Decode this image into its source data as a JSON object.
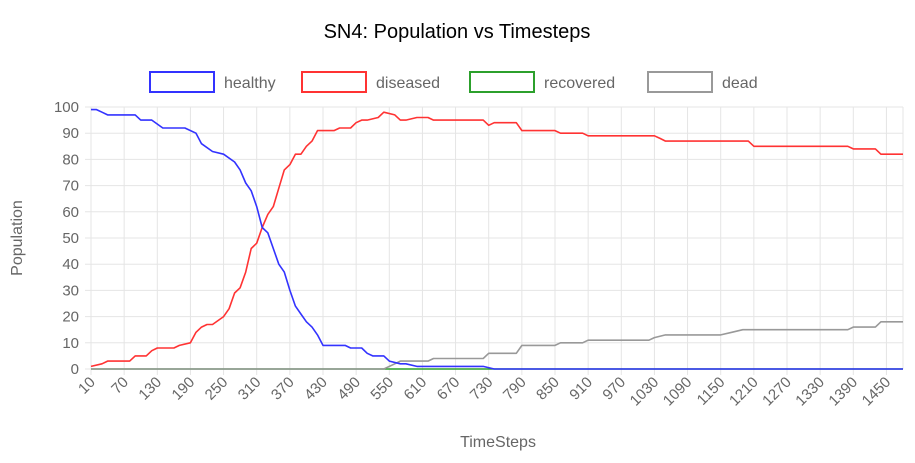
{
  "chart_data": {
    "type": "line",
    "title": "SN4: Population vs Timesteps",
    "xlabel": "TimeSteps",
    "ylabel": "Population",
    "xlim": [
      10,
      1480
    ],
    "ylim": [
      0,
      100
    ],
    "yticks": [
      0,
      10,
      20,
      30,
      40,
      50,
      60,
      70,
      80,
      90,
      100
    ],
    "xticks": [
      10,
      70,
      130,
      190,
      250,
      310,
      370,
      430,
      490,
      550,
      610,
      670,
      730,
      790,
      850,
      910,
      970,
      1030,
      1090,
      1150,
      1210,
      1270,
      1330,
      1390,
      1450
    ],
    "grid": true,
    "legend_position": "top",
    "series": [
      {
        "name": "healthy",
        "color": "#3333ff",
        "points": [
          [
            10,
            99
          ],
          [
            20,
            99
          ],
          [
            30,
            98
          ],
          [
            40,
            97
          ],
          [
            90,
            97
          ],
          [
            100,
            95
          ],
          [
            120,
            95
          ],
          [
            140,
            92
          ],
          [
            180,
            92
          ],
          [
            200,
            90
          ],
          [
            210,
            86
          ],
          [
            230,
            83
          ],
          [
            250,
            82
          ],
          [
            270,
            79
          ],
          [
            280,
            76
          ],
          [
            290,
            71
          ],
          [
            300,
            68
          ],
          [
            310,
            62
          ],
          [
            320,
            54
          ],
          [
            330,
            52
          ],
          [
            340,
            46
          ],
          [
            350,
            40
          ],
          [
            360,
            37
          ],
          [
            370,
            30
          ],
          [
            380,
            24
          ],
          [
            390,
            21
          ],
          [
            400,
            18
          ],
          [
            410,
            16
          ],
          [
            420,
            13
          ],
          [
            430,
            9
          ],
          [
            470,
            9
          ],
          [
            480,
            8
          ],
          [
            500,
            8
          ],
          [
            510,
            6
          ],
          [
            520,
            5
          ],
          [
            540,
            5
          ],
          [
            550,
            3
          ],
          [
            570,
            2
          ],
          [
            580,
            2
          ],
          [
            600,
            1
          ],
          [
            720,
            1
          ],
          [
            740,
            0
          ],
          [
            1480,
            0
          ]
        ]
      },
      {
        "name": "diseased",
        "color": "#ff3333",
        "points": [
          [
            10,
            1
          ],
          [
            30,
            2
          ],
          [
            40,
            3
          ],
          [
            80,
            3
          ],
          [
            90,
            5
          ],
          [
            110,
            5
          ],
          [
            120,
            7
          ],
          [
            130,
            8
          ],
          [
            160,
            8
          ],
          [
            170,
            9
          ],
          [
            190,
            10
          ],
          [
            200,
            14
          ],
          [
            210,
            16
          ],
          [
            220,
            17
          ],
          [
            230,
            17
          ],
          [
            250,
            20
          ],
          [
            260,
            23
          ],
          [
            270,
            29
          ],
          [
            280,
            31
          ],
          [
            290,
            37
          ],
          [
            300,
            46
          ],
          [
            310,
            48
          ],
          [
            320,
            54
          ],
          [
            330,
            59
          ],
          [
            340,
            62
          ],
          [
            350,
            69
          ],
          [
            360,
            76
          ],
          [
            370,
            78
          ],
          [
            380,
            82
          ],
          [
            390,
            82
          ],
          [
            400,
            85
          ],
          [
            410,
            87
          ],
          [
            420,
            91
          ],
          [
            450,
            91
          ],
          [
            460,
            92
          ],
          [
            480,
            92
          ],
          [
            490,
            94
          ],
          [
            500,
            95
          ],
          [
            510,
            95
          ],
          [
            530,
            96
          ],
          [
            540,
            98
          ],
          [
            560,
            97
          ],
          [
            570,
            95
          ],
          [
            580,
            95
          ],
          [
            600,
            96
          ],
          [
            620,
            96
          ],
          [
            630,
            95
          ],
          [
            720,
            95
          ],
          [
            730,
            93
          ],
          [
            740,
            94
          ],
          [
            780,
            94
          ],
          [
            790,
            91
          ],
          [
            850,
            91
          ],
          [
            860,
            90
          ],
          [
            900,
            90
          ],
          [
            910,
            89
          ],
          [
            1030,
            89
          ],
          [
            1040,
            88
          ],
          [
            1050,
            87
          ],
          [
            1200,
            87
          ],
          [
            1210,
            85
          ],
          [
            1380,
            85
          ],
          [
            1390,
            84
          ],
          [
            1430,
            84
          ],
          [
            1440,
            82
          ],
          [
            1480,
            82
          ]
        ]
      },
      {
        "name": "recovered",
        "color": "#2ca02c",
        "points": [
          [
            10,
            0
          ],
          [
            1480,
            0
          ]
        ]
      },
      {
        "name": "dead",
        "color": "#999999",
        "points": [
          [
            10,
            0
          ],
          [
            540,
            0
          ],
          [
            560,
            2
          ],
          [
            570,
            3
          ],
          [
            620,
            3
          ],
          [
            630,
            4
          ],
          [
            720,
            4
          ],
          [
            730,
            6
          ],
          [
            780,
            6
          ],
          [
            790,
            9
          ],
          [
            850,
            9
          ],
          [
            860,
            10
          ],
          [
            900,
            10
          ],
          [
            910,
            11
          ],
          [
            1020,
            11
          ],
          [
            1030,
            12
          ],
          [
            1050,
            13
          ],
          [
            1150,
            13
          ],
          [
            1170,
            14
          ],
          [
            1190,
            15
          ],
          [
            1380,
            15
          ],
          [
            1390,
            16
          ],
          [
            1430,
            16
          ],
          [
            1440,
            18
          ],
          [
            1480,
            18
          ]
        ]
      }
    ]
  }
}
